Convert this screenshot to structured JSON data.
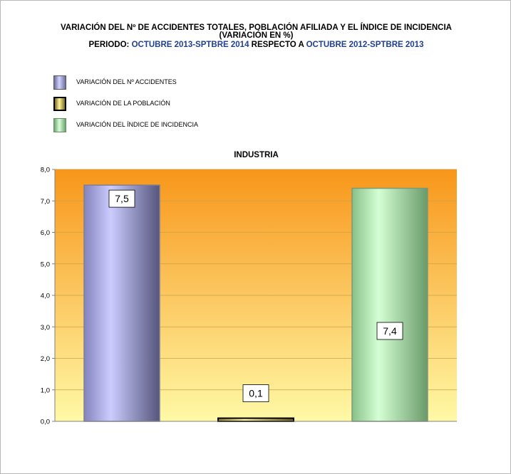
{
  "title": {
    "line1": "VARIACIÓN DEL Nº DE ACCIDENTES TOTALES, POBLACIÓN AFILIADA Y EL ÍNDICE DE INCIDENCIA",
    "line2": "(VARIACIÓN EN %)",
    "line3_part1": "PERIODO: ",
    "line3_part2": "OCTUBRE 2013-SPTBRE 2014",
    "line3_part3": " RESPECTO A ",
    "line3_part4": "OCTUBRE 2012-SPTBRE 2013"
  },
  "colors": {
    "accidentes": "#a8a8e0",
    "poblacion": "#ccb84a",
    "incidencia": "#9ad19a",
    "background_top": "#f8961a",
    "background_bottom": "#fff9a6",
    "title_blue": "#1f3f8f"
  },
  "chart_data": {
    "type": "bar",
    "title": "INDUSTRIA",
    "categories": [
      "VARIACIÓN DEL Nº ACCIDENTES",
      "VARIACIÓN DE LA POBLACIÓN",
      "VARIACIÓN DEL ÍNDICE DE INCIDENCIA"
    ],
    "values": [
      7.5,
      0.1,
      7.4
    ],
    "value_labels": [
      "7,5",
      "0,1",
      "7,4"
    ],
    "ylim": [
      0,
      8
    ],
    "yticks": [
      "0,0",
      "1,0",
      "2,0",
      "3,0",
      "4,0",
      "5,0",
      "6,0",
      "7,0",
      "8,0"
    ],
    "grid": true,
    "legend": [
      {
        "label": "VARIACIÓN DEL Nº ACCIDENTES",
        "color": "#a8a8e0"
      },
      {
        "label": "VARIACIÓN DE LA POBLACIÓN",
        "color": "#ccb84a"
      },
      {
        "label": "VARIACIÓN DEL ÍNDICE DE INCIDENCIA",
        "color": "#9ad19a"
      }
    ],
    "legend_position": "top-left"
  }
}
